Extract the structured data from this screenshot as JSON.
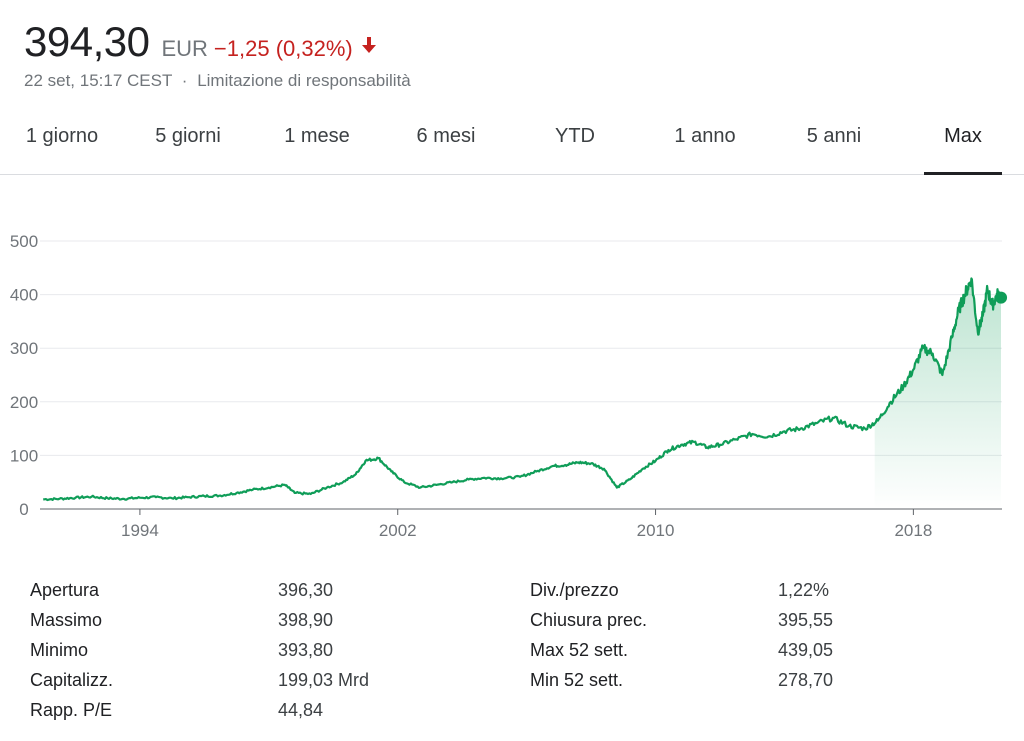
{
  "quote": {
    "price": "394,30",
    "currency": "EUR",
    "change": "−1,25 (0,32%)",
    "direction": "down",
    "timestamp": "22 set, 15:17 CEST",
    "separator": "·",
    "disclaimer": "Limitazione di responsabilità"
  },
  "colors": {
    "line": "#0f9d58",
    "negative": "#c5221f",
    "grid": "#e8eaed"
  },
  "tabs": [
    {
      "label": "1 giorno",
      "active": false
    },
    {
      "label": "5 giorni",
      "active": false
    },
    {
      "label": "1 mese",
      "active": false
    },
    {
      "label": "6 mesi",
      "active": false
    },
    {
      "label": "YTD",
      "active": false
    },
    {
      "label": "1 anno",
      "active": false
    },
    {
      "label": "5 anni",
      "active": false
    },
    {
      "label": "Max",
      "active": true
    }
  ],
  "chart_data": {
    "type": "area",
    "y_ticks": [
      "0",
      "100",
      "200",
      "300",
      "400",
      "500"
    ],
    "ylim": [
      0,
      500
    ],
    "x_ticks": [
      "1994",
      "2002",
      "2010",
      "2018"
    ],
    "xlim": [
      1990.9,
      2020.75
    ],
    "grid": true,
    "series": [
      {
        "x": [
          1991.0,
          1991.5,
          1992.0,
          1992.5,
          1993.0,
          1993.5,
          1994.0,
          1994.5,
          1995.0,
          1995.5,
          1996.0,
          1996.5,
          1997.0,
          1997.5,
          1998.0,
          1998.5,
          1998.8,
          1999.3,
          1999.8,
          2000.3,
          2000.7,
          2001.0,
          2001.4,
          2001.8,
          2002.2,
          2002.7,
          2003.2,
          2003.7,
          2004.2,
          2004.7,
          2005.2,
          2005.8,
          2006.3,
          2006.8,
          2007.2,
          2007.6,
          2008.0,
          2008.4,
          2008.8,
          2009.2,
          2009.6,
          2010.0,
          2010.4,
          2010.8,
          2011.2,
          2011.6,
          2012.0,
          2012.5,
          2013.0,
          2013.5,
          2014.0,
          2014.5,
          2015.0,
          2015.5,
          2016.0,
          2016.5,
          2016.9,
          2017.3,
          2017.7,
          2018.0,
          2018.3,
          2018.6,
          2018.9,
          2019.2,
          2019.4,
          2019.6,
          2019.8,
          2020.0,
          2020.15,
          2020.3,
          2020.45,
          2020.6,
          2020.72
        ],
        "values": [
          18,
          19,
          21,
          23,
          20,
          19,
          21,
          22,
          20,
          22,
          24,
          25,
          30,
          36,
          40,
          45,
          30,
          28,
          40,
          50,
          65,
          90,
          95,
          70,
          50,
          40,
          45,
          50,
          55,
          58,
          57,
          60,
          70,
          80,
          82,
          87,
          85,
          75,
          40,
          55,
          75,
          90,
          110,
          120,
          125,
          115,
          120,
          130,
          140,
          135,
          145,
          150,
          160,
          170,
          155,
          150,
          165,
          200,
          230,
          260,
          300,
          290,
          250,
          320,
          370,
          400,
          430,
          330,
          360,
          410,
          380,
          400,
          394.3
        ],
        "last_value": 394.3
      }
    ]
  },
  "stats": {
    "left": [
      {
        "label": "Apertura",
        "value": "396,30"
      },
      {
        "label": "Massimo",
        "value": "398,90"
      },
      {
        "label": "Minimo",
        "value": "393,80"
      },
      {
        "label": "Capitalizz.",
        "value": "199,03 Mrd"
      },
      {
        "label": "Rapp. P/E",
        "value": "44,84"
      }
    ],
    "right": [
      {
        "label": "Div./prezzo",
        "value": "1,22%"
      },
      {
        "label": "Chiusura prec.",
        "value": "395,55"
      },
      {
        "label": "Max 52 sett.",
        "value": "439,05"
      },
      {
        "label": "Min 52 sett.",
        "value": "278,70"
      }
    ]
  }
}
